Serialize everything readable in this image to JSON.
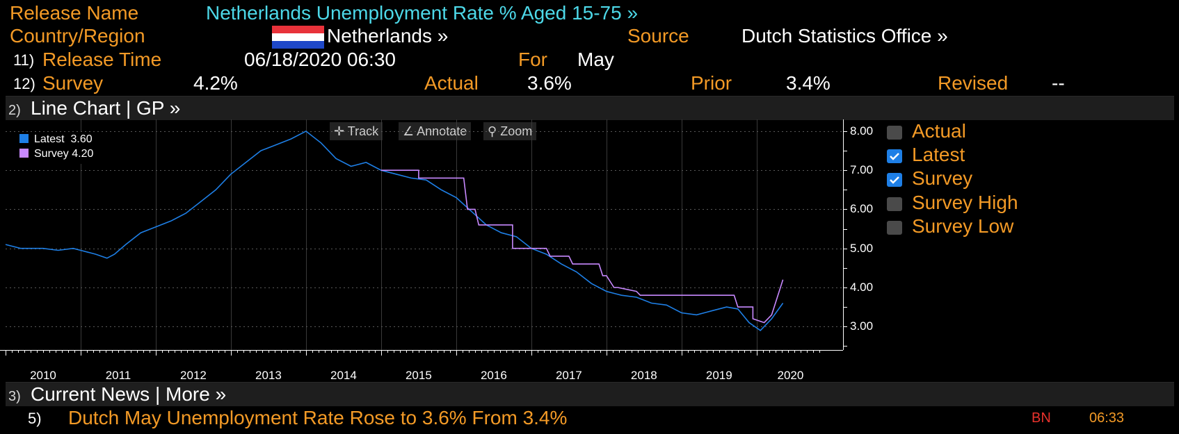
{
  "header": {
    "release_name_label": "Release Name",
    "release_name_value": "Netherlands Unemployment Rate % Aged 15-75 »",
    "country_label": "Country/Region",
    "country_value": "Netherlands »",
    "source_label": "Source",
    "source_value": "Dutch Statistics Office »",
    "release_time_num": "11)",
    "release_time_label": "Release Time",
    "release_time_value": "06/18/2020 06:30",
    "for_label": "For",
    "for_value": "May",
    "survey_num": "12)",
    "survey_label": "Survey",
    "survey_value": "4.2%",
    "actual_label": "Actual",
    "actual_value": "3.6%",
    "prior_label": "Prior",
    "prior_value": "3.4%",
    "revised_label": "Revised",
    "revised_value": "--"
  },
  "chart_panel": {
    "num": "2)",
    "title": "Line Chart | GP »",
    "tools": [
      "Track",
      "Annotate",
      "Zoom"
    ],
    "legend": [
      {
        "name": "Latest",
        "value": "3.60",
        "color": "#1e7fe6"
      },
      {
        "name": "Survey",
        "value": "4.20",
        "color": "#c889ff"
      }
    ],
    "series_toggles": [
      {
        "label": "Actual",
        "checked": false
      },
      {
        "label": "Latest",
        "checked": true
      },
      {
        "label": "Survey",
        "checked": true
      },
      {
        "label": "Survey High",
        "checked": false
      },
      {
        "label": "Survey Low",
        "checked": false
      }
    ]
  },
  "chart_data": {
    "type": "line",
    "title": "Line Chart",
    "x_ticks": [
      "2010",
      "2011",
      "2012",
      "2013",
      "2014",
      "2015",
      "2016",
      "2017",
      "2018",
      "2019",
      "2020"
    ],
    "y_ticks": [
      "8.00",
      "7.00",
      "6.00",
      "5.00",
      "4.00",
      "3.00"
    ],
    "ylim": [
      2.4,
      8.3
    ],
    "xlim": [
      2010.0,
      2020.9
    ],
    "series": [
      {
        "name": "Latest",
        "color": "#1e7fe6",
        "x": [
          2010.0,
          2010.2,
          2010.5,
          2010.7,
          2010.9,
          2011.0,
          2011.2,
          2011.35,
          2011.45,
          2011.6,
          2011.8,
          2012.0,
          2012.2,
          2012.4,
          2012.6,
          2012.8,
          2013.0,
          2013.2,
          2013.4,
          2013.6,
          2013.8,
          2014.0,
          2014.2,
          2014.4,
          2014.6,
          2014.8,
          2015.0,
          2015.2,
          2015.4,
          2015.6,
          2015.8,
          2016.0,
          2016.2,
          2016.4,
          2016.6,
          2016.8,
          2017.0,
          2017.2,
          2017.4,
          2017.6,
          2017.8,
          2018.0,
          2018.2,
          2018.4,
          2018.6,
          2018.8,
          2019.0,
          2019.2,
          2019.4,
          2019.6,
          2019.75,
          2019.9,
          2020.05,
          2020.2,
          2020.35
        ],
        "values": [
          5.1,
          5.0,
          5.0,
          4.95,
          5.0,
          4.95,
          4.85,
          4.75,
          4.85,
          5.1,
          5.4,
          5.55,
          5.7,
          5.9,
          6.2,
          6.5,
          6.9,
          7.2,
          7.5,
          7.65,
          7.8,
          8.0,
          7.7,
          7.3,
          7.1,
          7.2,
          7.0,
          6.9,
          6.8,
          6.75,
          6.5,
          6.3,
          5.95,
          5.6,
          5.4,
          5.3,
          5.0,
          4.85,
          4.6,
          4.4,
          4.1,
          3.9,
          3.8,
          3.75,
          3.6,
          3.55,
          3.35,
          3.3,
          3.4,
          3.5,
          3.45,
          3.1,
          2.9,
          3.2,
          3.6
        ]
      },
      {
        "name": "Survey",
        "color": "#c889ff",
        "x": [
          2015.0,
          2015.5,
          2015.5,
          2016.1,
          2016.15,
          2016.25,
          2016.3,
          2016.75,
          2016.75,
          2017.2,
          2017.25,
          2017.5,
          2017.55,
          2017.9,
          2017.95,
          2018.0,
          2018.1,
          2018.15,
          2018.4,
          2018.45,
          2019.35,
          2019.4,
          2019.7,
          2019.75,
          2019.95,
          2019.95,
          2020.1,
          2020.2,
          2020.35
        ],
        "values": [
          7.0,
          7.0,
          6.8,
          6.8,
          6.0,
          6.0,
          5.6,
          5.6,
          5.0,
          5.0,
          4.8,
          4.8,
          4.6,
          4.6,
          4.3,
          4.3,
          4.0,
          4.0,
          3.9,
          3.8,
          3.8,
          3.8,
          3.8,
          3.5,
          3.5,
          3.2,
          3.1,
          3.3,
          4.2
        ]
      }
    ]
  },
  "news_panel": {
    "num": "3)",
    "title": "Current News | More »",
    "items": [
      {
        "num": "5)",
        "headline": "Dutch May Unemployment Rate Rose to 3.6% From 3.4%",
        "source": "BN",
        "time": "06:33"
      }
    ]
  }
}
